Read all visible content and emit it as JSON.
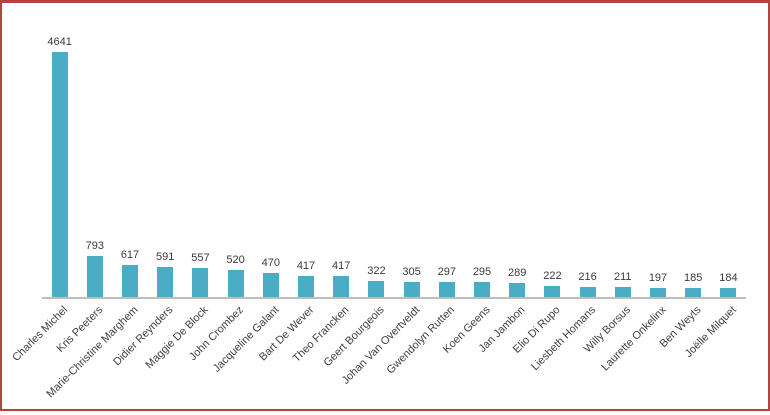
{
  "frame": {
    "border_color": "#b2433f",
    "background": "#ffffff"
  },
  "chart_data": {
    "type": "bar",
    "title": "",
    "xlabel": "",
    "ylabel": "",
    "categories": [
      "Charles Michel",
      "Kris Peeters",
      "Marie-Christine Marghem",
      "Didier Reynders",
      "Maggie De Block",
      "John Crombez",
      "Jacqueline Galant",
      "Bart De Wever",
      "Theo Francken",
      "Geert Bourgeois",
      "Johan Van Overtveldt",
      "Gwendolyn Rutten",
      "Koen Geens",
      "Jan Jambon",
      "Elio Di Rupo",
      "Liesbeth Homans",
      "Willy Borsus",
      "Laurette Onkelinx",
      "Ben Weyts",
      "Joëlle Milquet"
    ],
    "values": [
      4641,
      793,
      617,
      591,
      557,
      520,
      470,
      417,
      417,
      322,
      305,
      297,
      295,
      289,
      222,
      216,
      211,
      197,
      185,
      184
    ],
    "ylim": [
      0,
      4641
    ],
    "grid": false,
    "legend": "none",
    "data_labels_shown": true,
    "category_label_rotation_deg": -45,
    "bar_color": "#4BACC6",
    "axis_line_color": "#BDBDBD",
    "value_label_color": "#3a3a3a",
    "category_label_color": "#3f3f3f"
  }
}
